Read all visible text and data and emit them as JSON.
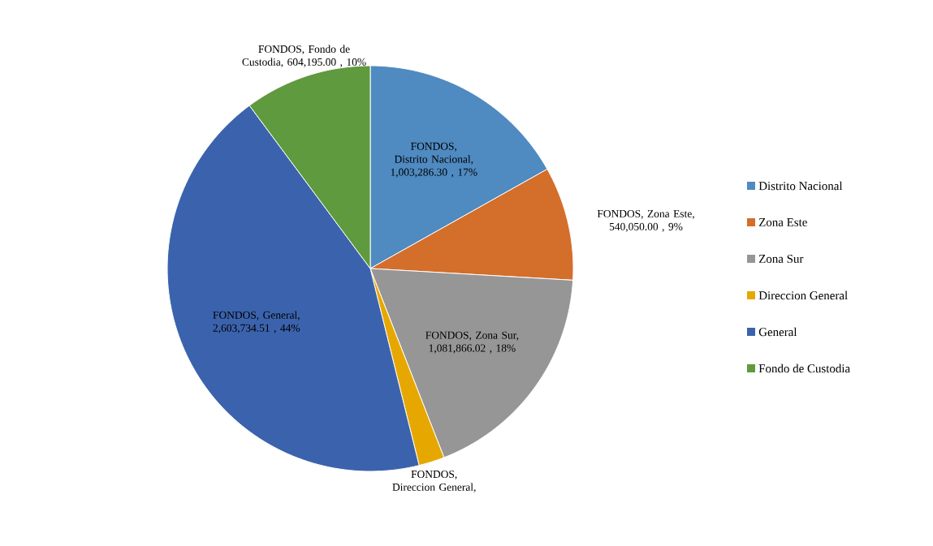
{
  "chart_data": {
    "type": "pie",
    "categories": [
      "Distrito Nacional",
      "Zona Este",
      "Zona Sur",
      "Direccion General",
      "General",
      "Fondo de Custodia"
    ],
    "values": [
      1003286.3,
      540050.0,
      1081866.02,
      122000,
      2603734.51,
      604195.0
    ],
    "colors": [
      "#4f8ac1",
      "#d46e2b",
      "#969696",
      "#e6a800",
      "#3b63ad",
      "#5f9a3e"
    ],
    "value_labels": [
      "FONDOS, Distrito Nacional, 1,003,286.30 , 17%",
      "FONDOS, Zona Este, 540,050.00 , 9%",
      "FONDOS, Zona Sur, 1,081,866.02 , 18%",
      "FONDOS, Direccion General,",
      "FONDOS, General, 2,603,734.51 , 44%",
      "FONDOS, Fondo de Custodia, 604,195.00 , 10%"
    ],
    "legend": "right"
  }
}
